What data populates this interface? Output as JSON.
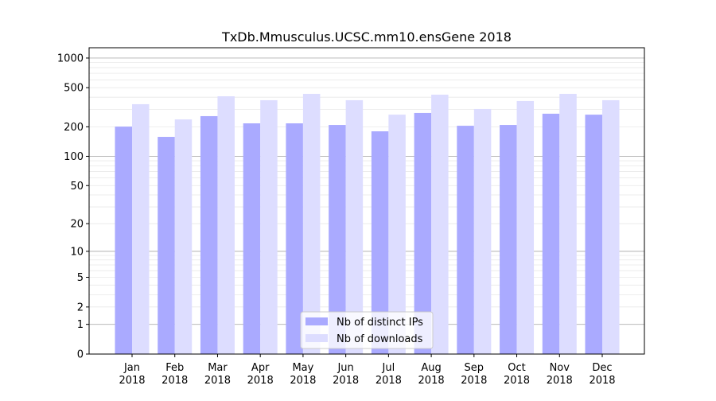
{
  "chart_data": {
    "type": "bar",
    "title": "TxDb.Mmusculus.UCSC.mm10.ensGene 2018",
    "xlabel": "",
    "ylabel": "",
    "yscale": "log10(1+y)",
    "ylim": [
      0,
      1200
    ],
    "yticks": [
      0,
      1,
      2,
      5,
      10,
      20,
      50,
      100,
      200,
      500,
      1000
    ],
    "categories": [
      "Jan\n2018",
      "Feb\n2018",
      "Mar\n2018",
      "Apr\n2018",
      "May\n2018",
      "Jun\n2018",
      "Jul\n2018",
      "Aug\n2018",
      "Sep\n2018",
      "Oct\n2018",
      "Nov\n2018",
      "Dec\n2018"
    ],
    "series": [
      {
        "name": "Nb of distinct IPs",
        "color": "#aaaaff",
        "values": [
          201,
          158,
          257,
          217,
          217,
          209,
          180,
          277,
          205,
          209,
          272,
          266
        ]
      },
      {
        "name": "Nb of downloads",
        "color": "#ddddff",
        "values": [
          340,
          238,
          409,
          373,
          433,
          373,
          266,
          425,
          304,
          366,
          433,
          373
        ]
      }
    ],
    "legend": "bottom-center",
    "grid": true
  }
}
